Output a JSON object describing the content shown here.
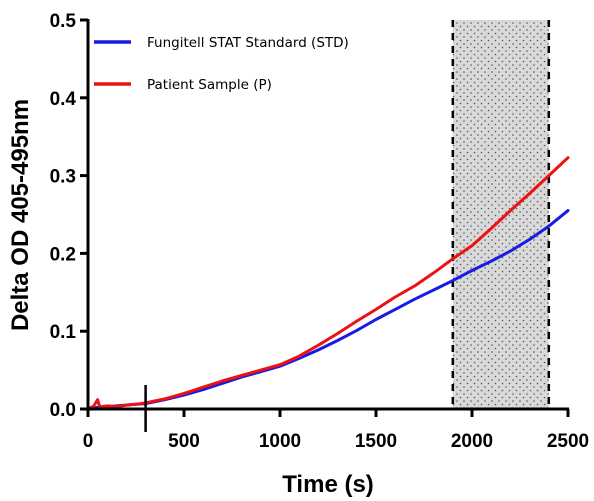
{
  "chart_data": {
    "type": "line",
    "title": "",
    "xlabel": "Time (s)",
    "ylabel": "Delta OD 405-495nm",
    "xlim": [
      0,
      2500
    ],
    "ylim": [
      0,
      0.5
    ],
    "x_ticks": [
      0,
      500,
      1000,
      1500,
      2000,
      2500
    ],
    "y_ticks": [
      0.0,
      0.1,
      0.2,
      0.3,
      0.4,
      0.5
    ],
    "x_tick_labels": [
      "0",
      "500",
      "1000",
      "1500",
      "2000",
      "2500"
    ],
    "y_tick_labels": [
      "0.0",
      "0.1",
      "0.2",
      "0.3",
      "0.4",
      "0.5"
    ],
    "grid": false,
    "legend_position": "top",
    "vertical_marker_x": 300,
    "shaded_window": {
      "x_start": 1900,
      "x_end": 2400,
      "pattern": "dotted gray",
      "border": "dashed"
    },
    "series": [
      {
        "name": "Fungitell STAT Standard (STD)",
        "color": "#1a1ae6",
        "x": [
          0,
          50,
          100,
          150,
          200,
          250,
          300,
          400,
          500,
          600,
          700,
          800,
          900,
          1000,
          1100,
          1200,
          1300,
          1400,
          1500,
          1600,
          1700,
          1800,
          1900,
          2000,
          2100,
          2200,
          2300,
          2400,
          2500
        ],
        "y": [
          0.0,
          0.002,
          0.003,
          0.004,
          0.005,
          0.006,
          0.007,
          0.012,
          0.018,
          0.025,
          0.033,
          0.041,
          0.048,
          0.055,
          0.065,
          0.076,
          0.088,
          0.101,
          0.115,
          0.128,
          0.141,
          0.153,
          0.165,
          0.178,
          0.19,
          0.203,
          0.218,
          0.235,
          0.255
        ]
      },
      {
        "name": "Patient Sample (P)",
        "color": "#ee1111",
        "x": [
          0,
          30,
          50,
          60,
          70,
          100,
          150,
          200,
          250,
          300,
          400,
          500,
          600,
          700,
          800,
          900,
          1000,
          1100,
          1200,
          1300,
          1400,
          1500,
          1600,
          1700,
          1800,
          1900,
          2000,
          2100,
          2200,
          2300,
          2400,
          2500
        ],
        "y": [
          0.0,
          0.004,
          0.012,
          0.004,
          0.003,
          0.004,
          0.003,
          0.005,
          0.006,
          0.008,
          0.013,
          0.02,
          0.028,
          0.036,
          0.043,
          0.05,
          0.057,
          0.068,
          0.082,
          0.097,
          0.113,
          0.128,
          0.144,
          0.158,
          0.175,
          0.193,
          0.21,
          0.232,
          0.255,
          0.277,
          0.3,
          0.323
        ]
      }
    ]
  }
}
